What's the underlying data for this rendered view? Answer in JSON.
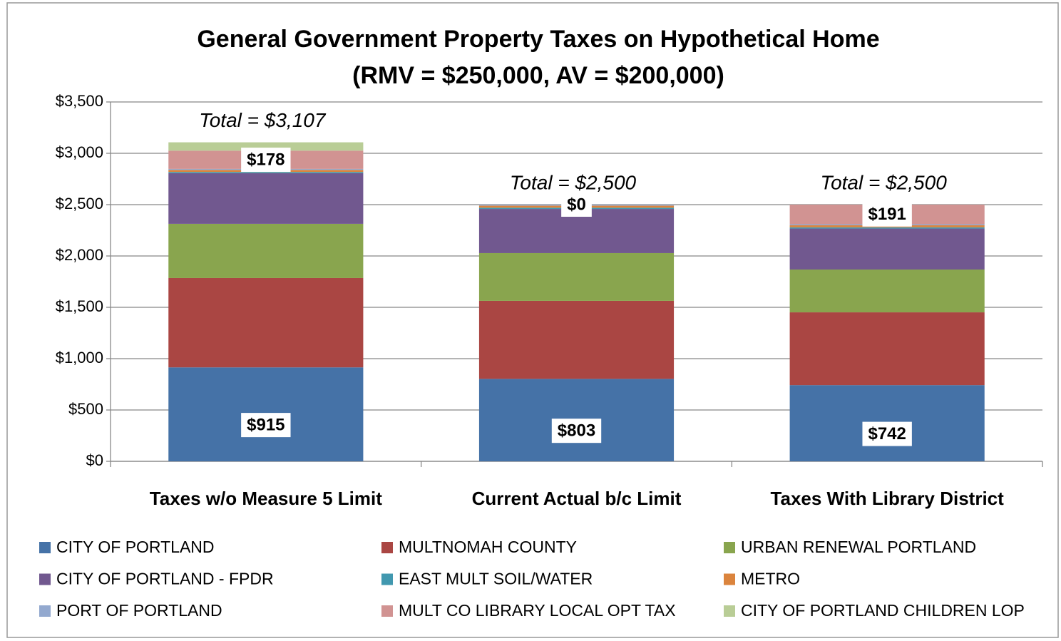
{
  "chart_data": {
    "type": "stacked_bar",
    "title": "General Government Property Taxes on Hypothetical Home",
    "subtitle": "(RMV = $250,000, AV = $200,000)",
    "categories": [
      "Taxes w/o Measure 5 Limit",
      "Current Actual b/c Limit",
      "Taxes With Library District"
    ],
    "series": [
      {
        "name": "CITY OF PORTLAND",
        "color": "#4572a7",
        "values": [
          915,
          803,
          742
        ],
        "value_labels": [
          "$915",
          "$803",
          "$742"
        ]
      },
      {
        "name": "MULTNOMAH COUNTY",
        "color": "#aa4643",
        "values": [
          870,
          760,
          709
        ]
      },
      {
        "name": "URBAN RENEWAL PORTLAND",
        "color": "#89a54e",
        "values": [
          528,
          465,
          417
        ]
      },
      {
        "name": "CITY OF PORTLAND - FPDR",
        "color": "#71588f",
        "values": [
          493,
          430,
          399
        ]
      },
      {
        "name": "EAST MULT SOIL/WATER",
        "color": "#4198af",
        "values": [
          12,
          12,
          12
        ]
      },
      {
        "name": "METRO",
        "color": "#db843d",
        "values": [
          20,
          20,
          20
        ]
      },
      {
        "name": "PORT OF PORTLAND",
        "color": "#93a9cf",
        "values": [
          10,
          10,
          10
        ]
      },
      {
        "name": "MULT CO LIBRARY LOCAL OPT TAX",
        "color": "#d19392",
        "values": [
          178,
          0,
          191
        ],
        "value_labels": [
          "$178",
          "$0",
          "$191"
        ]
      },
      {
        "name": "CITY OF PORTLAND CHILDREN LOP",
        "color": "#b9cd96",
        "values": [
          81,
          0,
          0
        ]
      }
    ],
    "annotations": [
      "Total = $3,107",
      "Total = $2,500",
      "Total = $2,500"
    ],
    "ylim": [
      0,
      3500
    ],
    "yticks": [
      {
        "value": 0,
        "label": "$0"
      },
      {
        "value": 500,
        "label": "$500"
      },
      {
        "value": 1000,
        "label": "$1,000"
      },
      {
        "value": 1500,
        "label": "$1,500"
      },
      {
        "value": 2000,
        "label": "$2,000"
      },
      {
        "value": 2500,
        "label": "$2,500"
      },
      {
        "value": 3000,
        "label": "$3,000"
      },
      {
        "value": 3500,
        "label": "$3,500"
      }
    ],
    "grid": true
  }
}
